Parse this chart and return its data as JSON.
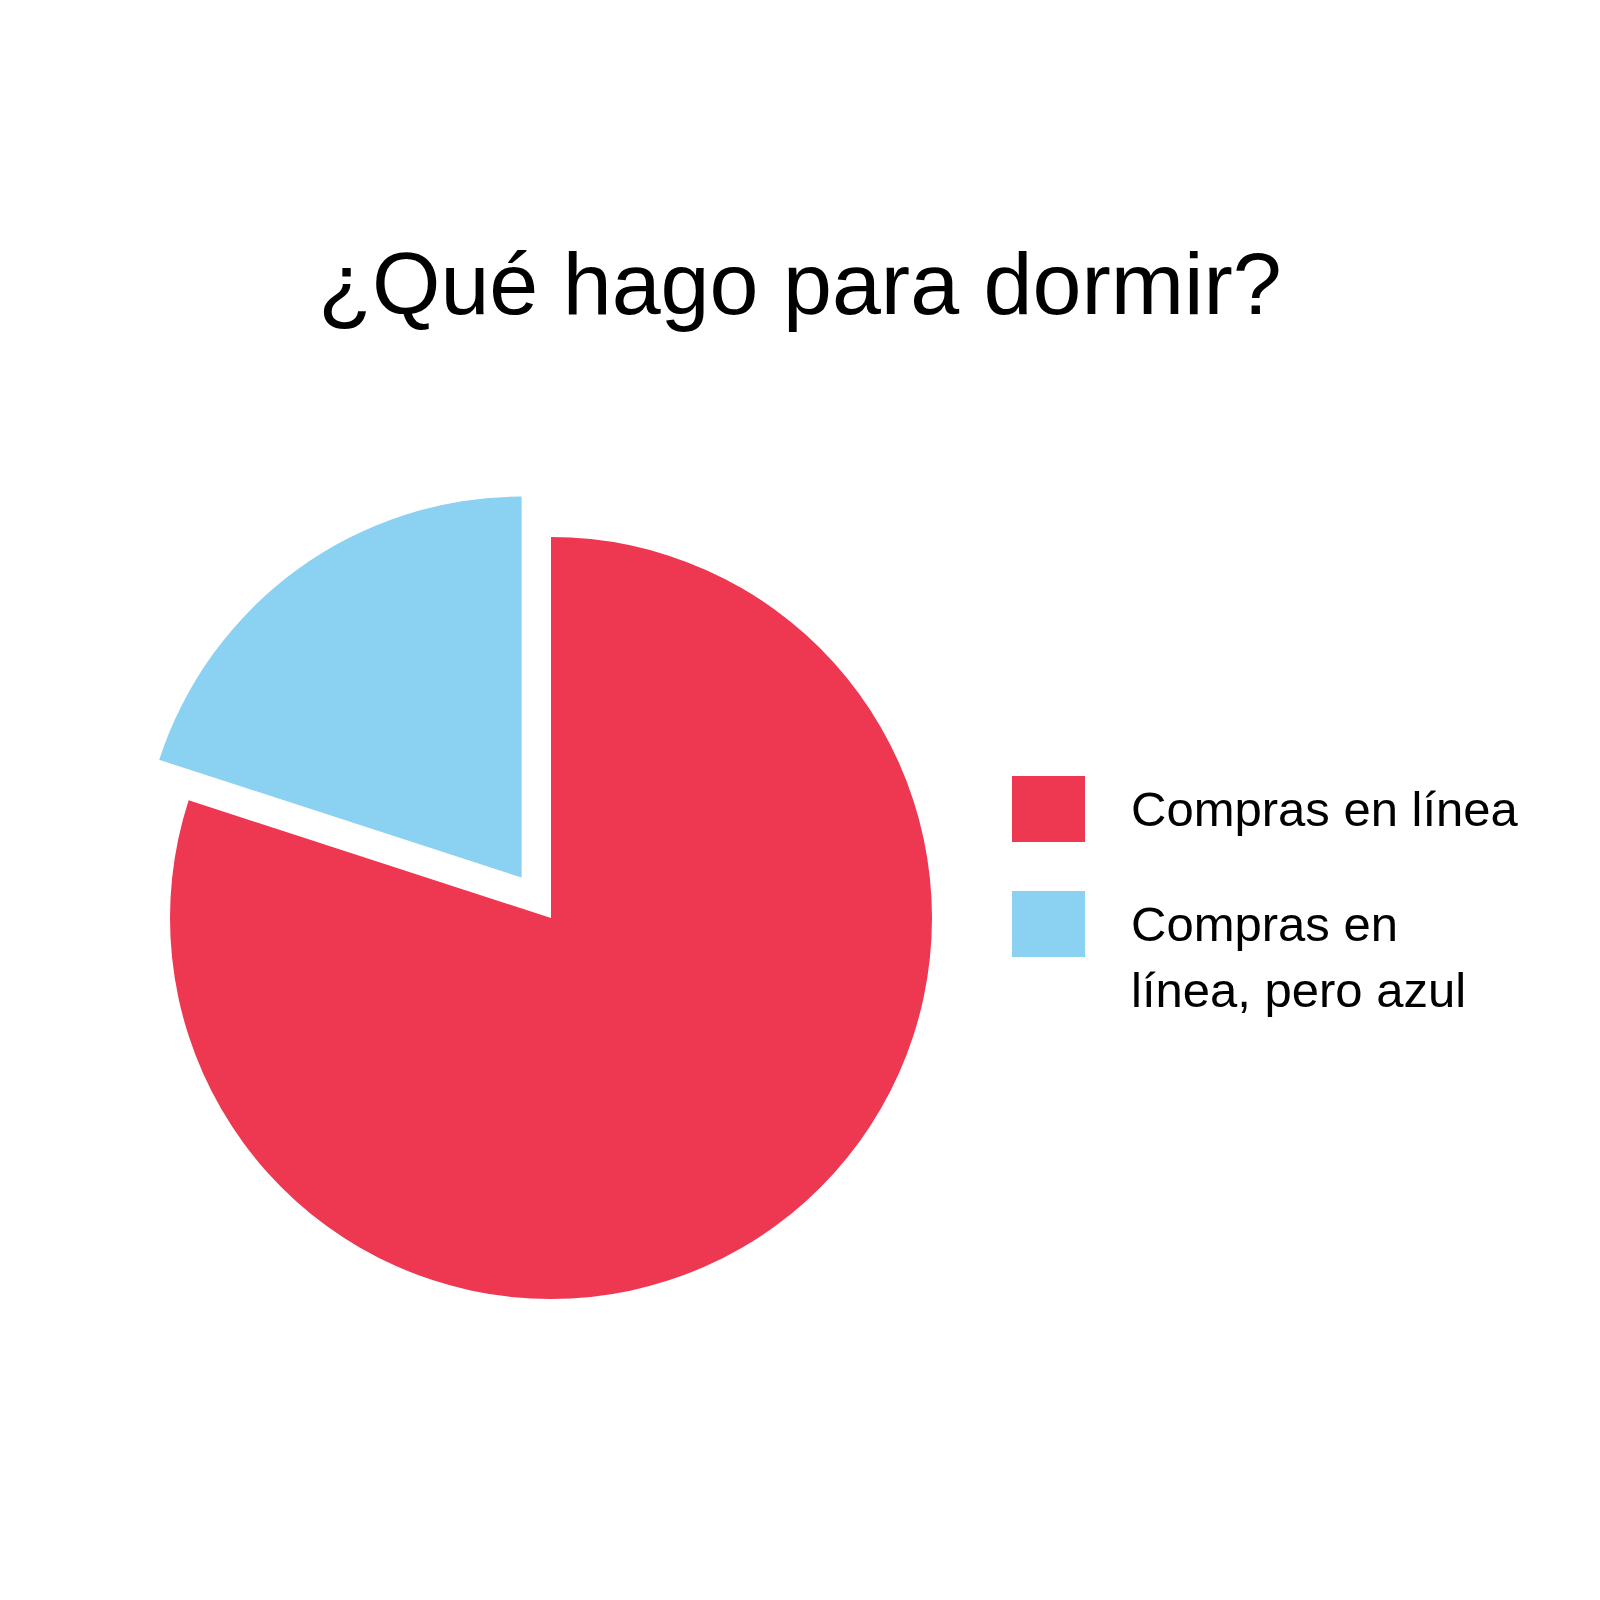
{
  "chart_data": {
    "type": "pie",
    "title": "¿Qué hago para dormir?",
    "categories": [
      "Compras en línea",
      "Compras en línea, pero azul"
    ],
    "values": [
      80,
      20
    ],
    "colors": [
      "#ee3751",
      "#8bd1f1"
    ],
    "legend": "right"
  }
}
